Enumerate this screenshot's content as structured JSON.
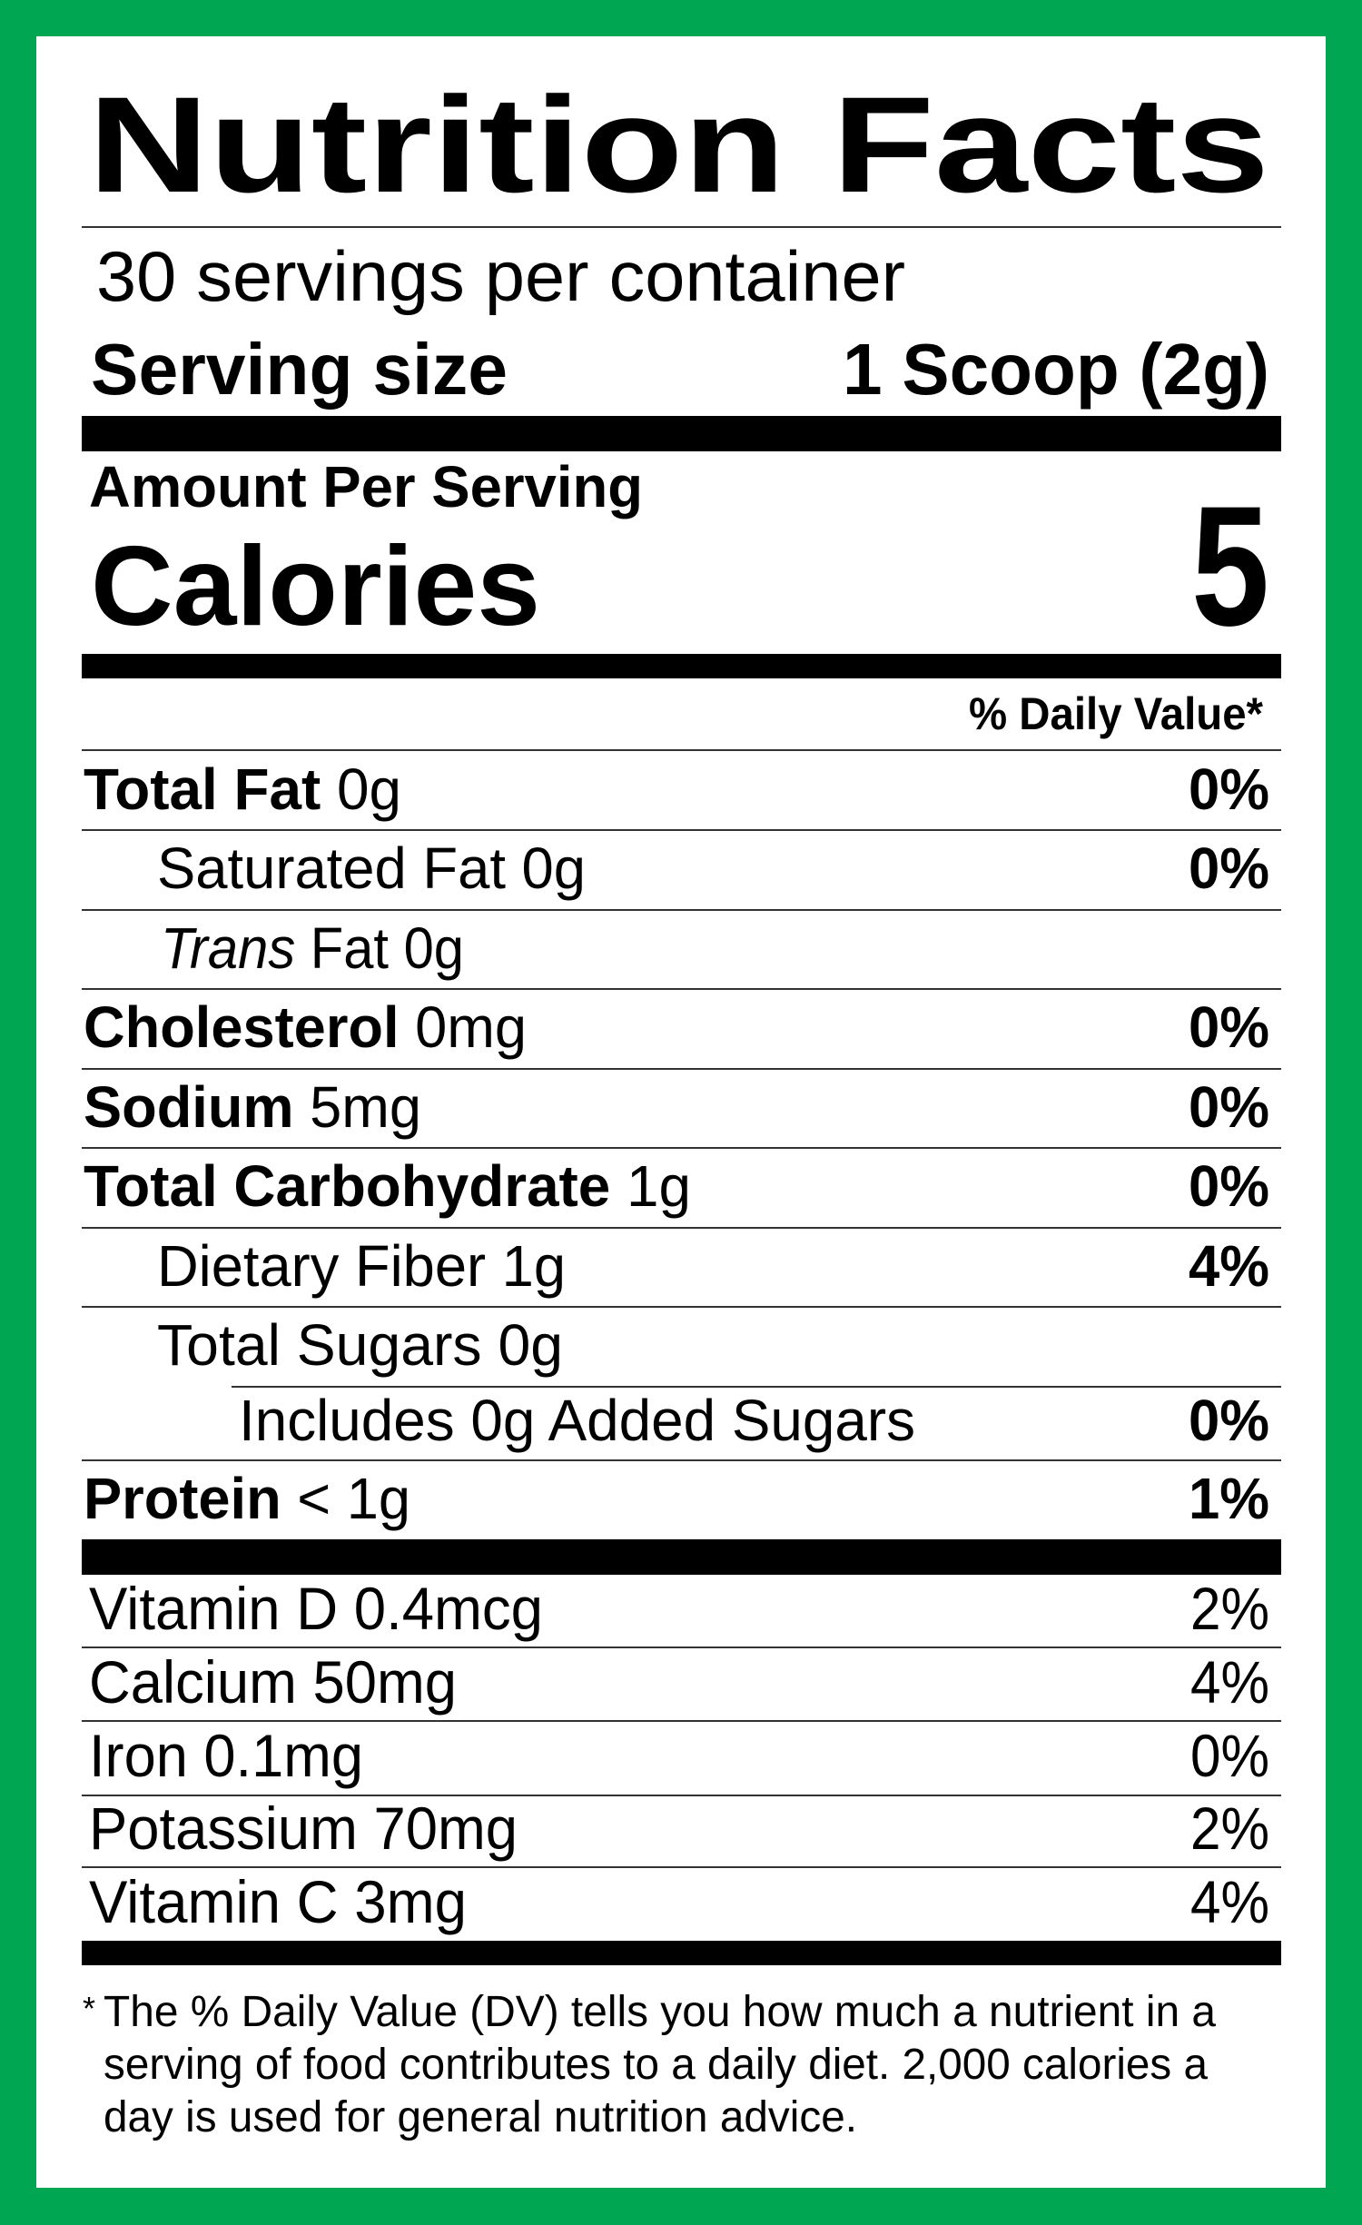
{
  "colors": {
    "border": "#00a651",
    "panel": "#ffffff",
    "ink": "#000000"
  },
  "title": "Nutrition Facts",
  "servings_per_container": "30 servings per container",
  "serving_size": {
    "label": "Serving size",
    "value": "1 Scoop (2g)"
  },
  "amount_per_serving": "Amount Per Serving",
  "calories": {
    "label": "Calories",
    "value": "5"
  },
  "daily_value_header": "% Daily Value*",
  "nutrients": [
    {
      "name": "Total Fat",
      "amount": " 0g",
      "dv": "0%"
    },
    {
      "name": "Saturated Fat 0g",
      "amount": "",
      "dv": "0%"
    },
    {
      "name": "Trans",
      "amount": " Fat 0g",
      "dv": ""
    },
    {
      "name": "Cholesterol",
      "amount": " 0mg",
      "dv": "0%"
    },
    {
      "name": "Sodium",
      "amount": " 5mg",
      "dv": "0%"
    },
    {
      "name": "Total Carbohydrate",
      "amount": " 1g",
      "dv": "0%"
    },
    {
      "name": "Dietary Fiber 1g",
      "amount": "",
      "dv": "4%"
    },
    {
      "name": "Total Sugars 0g",
      "amount": "",
      "dv": ""
    },
    {
      "name": "Includes 0g Added Sugars",
      "amount": "",
      "dv": "0%"
    },
    {
      "name": "Protein",
      "amount": " < 1g",
      "dv": "1%"
    }
  ],
  "vitamins": [
    {
      "label": "Vitamin D 0.4mcg",
      "dv": "2%"
    },
    {
      "label": "Calcium 50mg",
      "dv": "4%"
    },
    {
      "label": "Iron 0.1mg",
      "dv": "0%"
    },
    {
      "label": "Potassium 70mg",
      "dv": "2%"
    },
    {
      "label": "Vitamin C 3mg",
      "dv": "4%"
    }
  ],
  "footnote": {
    "asterisk": "*",
    "lines": [
      "The % Daily Value (DV) tells you how much a nutrient in a",
      "serving of food contributes to a daily diet. 2,000 calories a",
      "day is used for general nutrition advice."
    ]
  }
}
